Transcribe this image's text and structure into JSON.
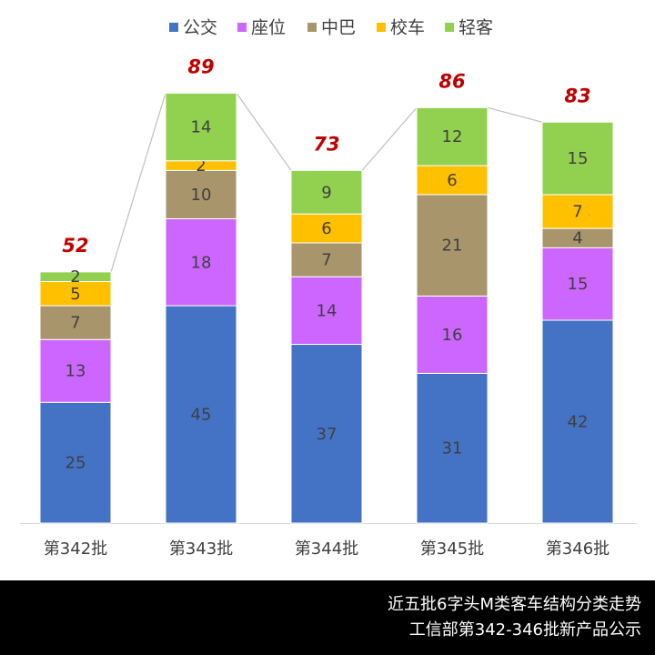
{
  "chart_data": {
    "type": "stacked-bar",
    "categories": [
      "第342批",
      "第343批",
      "第344批",
      "第345批",
      "第346批"
    ],
    "series": [
      {
        "name": "公交",
        "color": "#4472c4",
        "values": [
          25,
          45,
          37,
          31,
          42
        ]
      },
      {
        "name": "座位",
        "color": "#cc66ff",
        "values": [
          13,
          18,
          14,
          16,
          15
        ]
      },
      {
        "name": "中巴",
        "color": "#a8956b",
        "values": [
          7,
          10,
          7,
          21,
          4
        ]
      },
      {
        "name": "校车",
        "color": "#ffc000",
        "values": [
          5,
          2,
          6,
          6,
          7
        ]
      },
      {
        "name": "轻客",
        "color": "#92d050",
        "values": [
          2,
          14,
          9,
          12,
          15
        ]
      }
    ],
    "totals": [
      52,
      89,
      73,
      86,
      83
    ],
    "footer": [
      "近五批6字头M类客车结构分类走势",
      "工信部第342-346批新产品公示"
    ]
  }
}
